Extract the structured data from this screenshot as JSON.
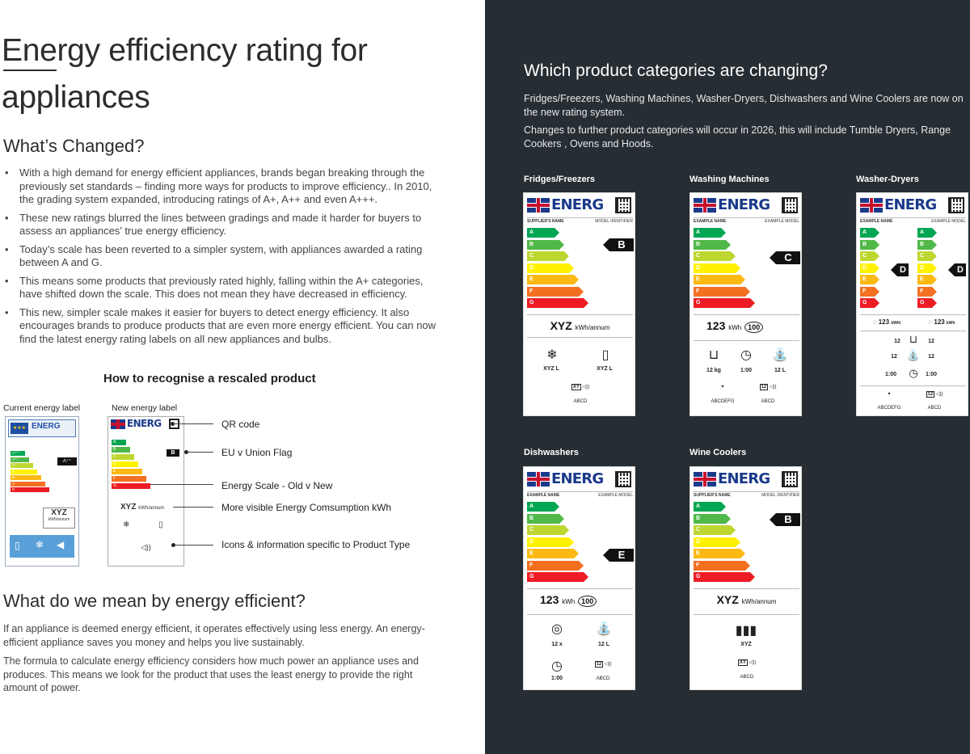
{
  "left": {
    "title_line1": "Energy efficiency rating for",
    "title_line2": "appliances",
    "whats_changed": {
      "heading": "What’s Changed?",
      "bullets": [
        "With a high demand for energy efficient appliances, brands began breaking through the previously set standards – finding more ways for products to improve efficiency.. In 2010, the grading system expanded, introducing ratings of A+, A++ and even A+++.",
        "These new ratings blurred the lines between gradings and made it harder for buyers to assess an appliances’ true energy efficiency.",
        "Today’s scale has been reverted to a simpler system, with appliances awarded a rating between A and G.",
        "This means some products that previously rated highly, falling within the A+ categories, have shifted down the scale. This does not mean they have decreased in efficiency.",
        "This new, simpler scale makes it easier for buyers to detect energy efficiency. It also encourages brands to produce products that are even more energy efficient. You can now find the latest energy rating labels on all new appliances and bulbs."
      ]
    },
    "rescaled": {
      "heading": "How to recognise a rescaled product",
      "current_label": "Current energy label",
      "new_label": "New energy label",
      "old_label_rating": "A⁺⁺",
      "old_label_energ": "ENERG",
      "old_label_xyz": "XYZ",
      "old_label_kwh": "kWh/annum",
      "old_label_scale": [
        "A⁺⁺⁺",
        "A⁺⁺",
        "A⁺",
        "A",
        "B",
        "C",
        "D"
      ],
      "callouts": [
        "QR code",
        "EU v Union Flag",
        "Energy Scale - Old v New",
        "More visible Energy Comsumption kWh",
        "Icons & information specific to Product Type"
      ]
    },
    "energy_efficient": {
      "heading": "What do we mean by energy efficient?",
      "para1": "If an appliance is deemed energy efficient, it operates effectively using less energy. An energy-efficient appliance saves you money and helps you live sustainably.",
      "para2": "The formula to calculate energy efficiency considers how much power an appliance uses and produces. This means we look for the product that uses the least energy to provide the right amount of power."
    }
  },
  "right": {
    "heading": "Which product categories are changing?",
    "para1": "Fridges/Freezers, Washing Machines, Washer-Dryers, Dishwashers and Wine Coolers are now on the new rating system.",
    "para2": "Changes to further product categories will occur in 2026, this will include Tumble Dryers, Range Cookers , Ovens and Hoods.",
    "energ_word": "ENERG",
    "scale_letters": [
      "A",
      "B",
      "C",
      "D",
      "E",
      "F",
      "G"
    ],
    "scale_colors": [
      "#00a651",
      "#50b848",
      "#bed630",
      "#fff200",
      "#fdb913",
      "#f37021",
      "#ed1c24"
    ],
    "categories": [
      {
        "name": "Fridges/Freezers",
        "supplier": "SUPPLIER'S NAME",
        "model": "MODEL IDENTIFIER",
        "rating": "B",
        "consumption": "XYZ",
        "unit": "kWh/annum",
        "icon1": "XYZ L",
        "icon2": "XYZ L",
        "noise": "XY",
        "noise_class": "ABCD"
      },
      {
        "name": "Washing Machines",
        "supplier": "EXAMPLE NAME",
        "model": "EXAMPLE MODEL",
        "rating": "C",
        "consumption": "123",
        "unit": "kWh",
        "cycles": "100",
        "icon1": "12 kg",
        "icon2": "1:00",
        "icon3": "12 L",
        "spin": "ABCDEFG",
        "noise": "12",
        "noise_class": "ABCD"
      },
      {
        "name": "Washer-Dryers",
        "supplier": "EXAMPLE NAME",
        "model": "EXAMPLE MODEL",
        "rating": "D",
        "rating2": "D",
        "consumption": "123",
        "unit": "kWh/",
        "unit2": "kWh",
        "row1a": "12",
        "row1b": "12",
        "row2a": "12",
        "row2b": "12",
        "row3a": "1:00",
        "row3b": "1:00",
        "spin": "ABCDEFG",
        "noise": "12",
        "noise_class": "ABCD"
      },
      {
        "name": "Dishwashers",
        "supplier": "EXAMPLE NAME",
        "model": "EXAMPLE MODEL",
        "rating": "E",
        "consumption": "123",
        "unit": "kWh",
        "cycles": "100",
        "icon1": "12 x",
        "icon2": "12 L",
        "icon3": "1:00",
        "noise": "12",
        "noise_class": "ABCD"
      },
      {
        "name": "Wine Coolers",
        "supplier": "SUPPLIER'S NAME",
        "model": "MODEL IDENTIFIER",
        "rating": "B",
        "consumption": "XYZ",
        "unit": "kWh/annum",
        "icon1": "XYZ",
        "noise": "XY",
        "noise_class": "ABCD"
      }
    ]
  }
}
